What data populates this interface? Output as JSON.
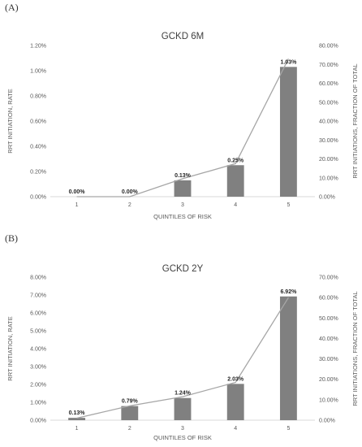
{
  "panels": [
    {
      "label": "(A)",
      "chart_data": {
        "type": "bar",
        "title": "GCKD 6M",
        "xlabel": "QUINTILES OF RISK",
        "ylabel": "RRT INITIATION, RATE",
        "y2label": "RRT INITIATIONS, FRACTION OF TOTAL",
        "categories": [
          "1",
          "2",
          "3",
          "4",
          "5"
        ],
        "series": [
          {
            "type": "bar",
            "axis": "left",
            "values": [
              0.0,
              0.0,
              0.13,
              0.25,
              1.03
            ],
            "labels": [
              "0.00%",
              "0.00%",
              "0.13%",
              "0.25%",
              "1.03%"
            ],
            "color": "#808080"
          },
          {
            "type": "line",
            "axis": "right",
            "values": [
              0.0,
              0.0,
              9.5,
              17.5,
              73.0
            ],
            "color": "#a6a6a6"
          }
        ],
        "ylim": [
          0,
          1.2
        ],
        "yticks": [
          "0.00%",
          "0.20%",
          "0.40%",
          "0.60%",
          "0.80%",
          "1.00%",
          "1.20%"
        ],
        "y2lim": [
          0,
          80
        ],
        "y2ticks": [
          "0.00%",
          "10.00%",
          "20.00%",
          "30.00%",
          "40.00%",
          "50.00%",
          "60.00%",
          "70.00%",
          "80.00%"
        ],
        "grid": false,
        "legend": "none"
      }
    },
    {
      "label": "(B)",
      "chart_data": {
        "type": "bar",
        "title": "GCKD 2Y",
        "xlabel": "QUINTILES OF RISK",
        "ylabel": "RRT INITIATION, RATE",
        "y2label": "RRT INITIATIONS, FRACTION OF TOTAL",
        "categories": [
          "1",
          "2",
          "3",
          "4",
          "5"
        ],
        "series": [
          {
            "type": "bar",
            "axis": "left",
            "values": [
              0.13,
              0.79,
              1.24,
              2.03,
              6.92
            ],
            "labels": [
              "0.13%",
              "0.79%",
              "1.24%",
              "2.03%",
              "6.92%"
            ],
            "color": "#808080"
          },
          {
            "type": "line",
            "axis": "right",
            "values": [
              1.0,
              7.0,
              11.5,
              18.5,
              60.0
            ],
            "color": "#a6a6a6"
          }
        ],
        "ylim": [
          0,
          8
        ],
        "yticks": [
          "0.00%",
          "1.00%",
          "2.00%",
          "3.00%",
          "4.00%",
          "5.00%",
          "6.00%",
          "7.00%",
          "8.00%"
        ],
        "y2lim": [
          0,
          70
        ],
        "y2ticks": [
          "0.00%",
          "10.00%",
          "20.00%",
          "30.00%",
          "40.00%",
          "50.00%",
          "60.00%",
          "70.00%"
        ],
        "grid": false,
        "legend": "none"
      }
    }
  ]
}
